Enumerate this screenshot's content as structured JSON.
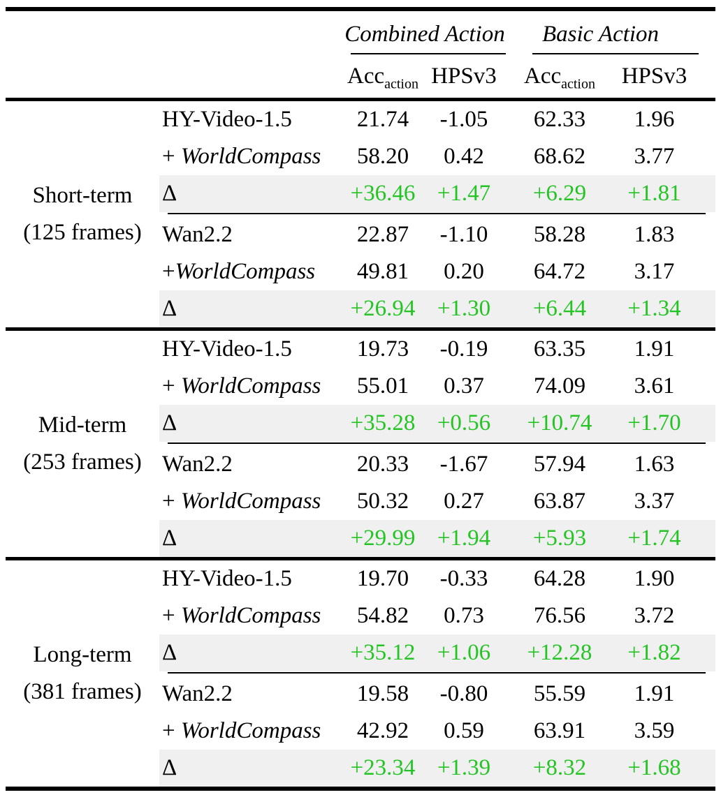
{
  "table": {
    "columns": {
      "groups": [
        {
          "label": "Combined Action"
        },
        {
          "label": "Basic Action"
        }
      ],
      "metrics": {
        "acc_base": "Acc",
        "acc_sub": "action",
        "hps": "HPSv3"
      }
    },
    "colors": {
      "delta_text": "#25C425",
      "delta_row_bg": "#F0F0F0",
      "rule": "#000000"
    },
    "sections": [
      {
        "label_line1": "Short-term",
        "label_line2": "(125 frames)",
        "blocks": [
          {
            "rows": [
              {
                "model_prefix": "",
                "model": "HY-Video-1.5",
                "model_italic": false,
                "is_delta": false,
                "values": [
                  "21.74",
                  "-1.05",
                  "62.33",
                  "1.96"
                ]
              },
              {
                "model_prefix": "+ ",
                "model": "WorldCompass",
                "model_italic": true,
                "is_delta": false,
                "values": [
                  "58.20",
                  "0.42",
                  "68.62",
                  "3.77"
                ]
              },
              {
                "model_prefix": "",
                "model": "Δ",
                "model_italic": false,
                "is_delta": true,
                "values": [
                  "+36.46",
                  "+1.47",
                  "+6.29",
                  "+1.81"
                ]
              }
            ]
          },
          {
            "rows": [
              {
                "model_prefix": "",
                "model": "Wan2.2",
                "model_italic": false,
                "is_delta": false,
                "values": [
                  "22.87",
                  "-1.10",
                  "58.28",
                  "1.83"
                ]
              },
              {
                "model_prefix": "+",
                "model": "WorldCompass",
                "model_italic": true,
                "is_delta": false,
                "values": [
                  "49.81",
                  "0.20",
                  "64.72",
                  "3.17"
                ]
              },
              {
                "model_prefix": "",
                "model": "Δ",
                "model_italic": false,
                "is_delta": true,
                "values": [
                  "+26.94",
                  "+1.30",
                  "+6.44",
                  "+1.34"
                ]
              }
            ]
          }
        ]
      },
      {
        "label_line1": "Mid-term",
        "label_line2": "(253 frames)",
        "blocks": [
          {
            "rows": [
              {
                "model_prefix": "",
                "model": "HY-Video-1.5",
                "model_italic": false,
                "is_delta": false,
                "values": [
                  "19.73",
                  "-0.19",
                  "63.35",
                  "1.91"
                ]
              },
              {
                "model_prefix": "+ ",
                "model": "WorldCompass",
                "model_italic": true,
                "is_delta": false,
                "values": [
                  "55.01",
                  "0.37",
                  "74.09",
                  "3.61"
                ]
              },
              {
                "model_prefix": "",
                "model": "Δ",
                "model_italic": false,
                "is_delta": true,
                "values": [
                  "+35.28",
                  "+0.56",
                  "+10.74",
                  "+1.70"
                ]
              }
            ]
          },
          {
            "rows": [
              {
                "model_prefix": "",
                "model": "Wan2.2",
                "model_italic": false,
                "is_delta": false,
                "values": [
                  "20.33",
                  "-1.67",
                  "57.94",
                  "1.63"
                ]
              },
              {
                "model_prefix": "+ ",
                "model": "WorldCompass",
                "model_italic": true,
                "is_delta": false,
                "values": [
                  "50.32",
                  "0.27",
                  "63.87",
                  "3.37"
                ]
              },
              {
                "model_prefix": "",
                "model": "Δ",
                "model_italic": false,
                "is_delta": true,
                "values": [
                  "+29.99",
                  "+1.94",
                  "+5.93",
                  "+1.74"
                ]
              }
            ]
          }
        ]
      },
      {
        "label_line1": "Long-term",
        "label_line2": "(381 frames)",
        "blocks": [
          {
            "rows": [
              {
                "model_prefix": "",
                "model": "HY-Video-1.5",
                "model_italic": false,
                "is_delta": false,
                "values": [
                  "19.70",
                  "-0.33",
                  "64.28",
                  "1.90"
                ]
              },
              {
                "model_prefix": "+ ",
                "model": "WorldCompass",
                "model_italic": true,
                "is_delta": false,
                "values": [
                  "54.82",
                  "0.73",
                  "76.56",
                  "3.72"
                ]
              },
              {
                "model_prefix": "",
                "model": "Δ",
                "model_italic": false,
                "is_delta": true,
                "values": [
                  "+35.12",
                  "+1.06",
                  "+12.28",
                  "+1.82"
                ]
              }
            ]
          },
          {
            "rows": [
              {
                "model_prefix": "",
                "model": "Wan2.2",
                "model_italic": false,
                "is_delta": false,
                "values": [
                  "19.58",
                  "-0.80",
                  "55.59",
                  "1.91"
                ]
              },
              {
                "model_prefix": "+ ",
                "model": "WorldCompass",
                "model_italic": true,
                "is_delta": false,
                "values": [
                  "42.92",
                  "0.59",
                  "63.91",
                  "3.59"
                ]
              },
              {
                "model_prefix": "",
                "model": "Δ",
                "model_italic": false,
                "is_delta": true,
                "values": [
                  "+23.34",
                  "+1.39",
                  "+8.32",
                  "+1.68"
                ]
              }
            ]
          }
        ]
      }
    ]
  }
}
